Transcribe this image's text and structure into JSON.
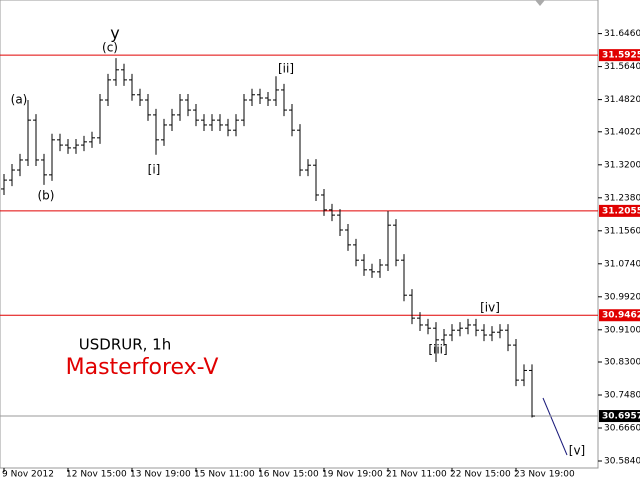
{
  "chart_data": {
    "type": "ohlc",
    "title": "USDRUR, 1h",
    "subtitle": "Masterforex-V",
    "categories": [
      "9 Nov 2012",
      null,
      null,
      null,
      null,
      null,
      null,
      null,
      "12 Nov 15:00",
      null,
      null,
      null,
      null,
      null,
      null,
      null,
      "13 Nov 19:00",
      null,
      null,
      null,
      null,
      null,
      null,
      null,
      "15 Nov 11:00",
      null,
      null,
      null,
      null,
      null,
      null,
      null,
      "16 Nov 15:00",
      null,
      null,
      null,
      null,
      null,
      null,
      null,
      "19 Nov 19:00",
      null,
      null,
      null,
      null,
      null,
      null,
      null,
      "21 Nov 11:00",
      null,
      null,
      null,
      null,
      null,
      null,
      null,
      "22 Nov 15:00",
      null,
      null,
      null,
      null,
      null,
      null,
      null,
      "23 Nov 19:00",
      null,
      null
    ],
    "open": [
      31.26,
      31.282,
      31.307,
      31.332,
      31.431,
      31.332,
      31.295,
      31.382,
      31.369,
      31.362,
      31.369,
      31.377,
      31.387,
      31.481,
      31.531,
      31.556,
      31.531,
      31.494,
      31.481,
      31.444,
      31.382,
      31.419,
      31.444,
      31.481,
      31.456,
      31.431,
      31.419,
      31.431,
      31.419,
      31.406,
      31.431,
      31.481,
      31.494,
      31.486,
      31.481,
      31.506,
      31.456,
      31.406,
      31.307,
      31.319,
      31.245,
      31.208,
      31.195,
      31.158,
      31.121,
      31.083,
      31.059,
      31.054,
      31.071,
      31.17,
      31.083,
      30.996,
      30.939,
      30.922,
      30.914,
      30.885,
      30.897,
      30.909,
      30.914,
      30.922,
      30.909,
      30.897,
      30.904,
      30.909,
      30.872,
      30.785,
      30.809
    ],
    "high": [
      31.297,
      31.322,
      31.347,
      31.481,
      31.446,
      31.347,
      31.397,
      31.397,
      31.384,
      31.384,
      31.392,
      31.402,
      31.496,
      31.546,
      31.585,
      31.571,
      31.546,
      31.509,
      31.496,
      31.459,
      31.434,
      31.459,
      31.496,
      31.496,
      31.471,
      31.446,
      31.446,
      31.446,
      31.434,
      31.446,
      31.496,
      31.509,
      31.509,
      31.501,
      31.54,
      31.521,
      31.471,
      31.421,
      31.334,
      31.334,
      31.26,
      31.223,
      31.21,
      31.173,
      31.136,
      31.098,
      31.074,
      31.086,
      31.205,
      31.185,
      31.098,
      31.011,
      30.954,
      30.937,
      30.929,
      30.912,
      30.924,
      30.929,
      30.937,
      30.937,
      30.924,
      30.919,
      30.924,
      30.924,
      30.887,
      30.824,
      30.824
    ],
    "low": [
      31.245,
      31.267,
      31.292,
      31.317,
      31.317,
      31.27,
      31.28,
      31.354,
      31.347,
      31.347,
      31.354,
      31.362,
      31.372,
      31.466,
      31.516,
      31.516,
      31.479,
      31.466,
      31.429,
      31.345,
      31.367,
      31.404,
      31.429,
      31.441,
      31.416,
      31.404,
      31.404,
      31.404,
      31.391,
      31.391,
      31.416,
      31.466,
      31.471,
      31.466,
      31.466,
      31.441,
      31.391,
      31.292,
      31.292,
      31.23,
      31.193,
      31.18,
      31.143,
      31.106,
      31.068,
      31.044,
      31.039,
      31.039,
      31.056,
      31.068,
      30.981,
      30.924,
      30.907,
      30.899,
      30.83,
      30.87,
      30.882,
      30.894,
      30.899,
      30.894,
      30.882,
      30.882,
      30.889,
      30.857,
      30.77,
      30.77,
      30.692
    ],
    "close": [
      31.282,
      31.307,
      31.332,
      31.431,
      31.332,
      31.295,
      31.382,
      31.369,
      31.362,
      31.369,
      31.377,
      31.387,
      31.481,
      31.531,
      31.556,
      31.531,
      31.494,
      31.481,
      31.444,
      31.382,
      31.419,
      31.444,
      31.481,
      31.456,
      31.431,
      31.419,
      31.431,
      31.419,
      31.406,
      31.431,
      31.481,
      31.494,
      31.486,
      31.481,
      31.506,
      31.456,
      31.406,
      31.307,
      31.319,
      31.245,
      31.208,
      31.195,
      31.158,
      31.121,
      31.083,
      31.059,
      31.054,
      31.071,
      31.17,
      31.083,
      30.996,
      30.939,
      30.922,
      30.914,
      30.885,
      30.897,
      30.909,
      30.914,
      30.922,
      30.909,
      30.897,
      30.904,
      30.909,
      30.872,
      30.785,
      30.809,
      30.6957
    ],
    "color": "#000000",
    "ylim": [
      30.5666,
      31.7295
    ],
    "yticks": [
      {
        "value": 31.646,
        "label": "31.6460"
      },
      {
        "value": 31.564,
        "label": "31.5640"
      },
      {
        "value": 31.482,
        "label": "31.4820"
      },
      {
        "value": 31.402,
        "label": "31.4020"
      },
      {
        "value": 31.32,
        "label": "31.3200"
      },
      {
        "value": 31.238,
        "label": "31.2380"
      },
      {
        "value": 31.156,
        "label": "31.1560"
      },
      {
        "value": 31.074,
        "label": "31.0740"
      },
      {
        "value": 30.992,
        "label": "30.9920"
      },
      {
        "value": 30.91,
        "label": "30.9100"
      },
      {
        "value": 30.83,
        "label": "30.8300"
      },
      {
        "value": 30.748,
        "label": "30.7480"
      },
      {
        "value": 30.666,
        "label": "30.6660"
      },
      {
        "value": 30.584,
        "label": "30.5840"
      }
    ],
    "levels": [
      {
        "value": 31.5925,
        "color": "#e00000"
      },
      {
        "value": 31.2055,
        "color": "#e00000"
      },
      {
        "value": 30.9462,
        "color": "#e00000"
      },
      {
        "value": 30.6957,
        "color": "#000000"
      }
    ],
    "annotations": [
      "(a)",
      "(b)",
      "y",
      "(c)",
      "[i]",
      "[ii]",
      "[iii]",
      "[iv]",
      "[v]"
    ]
  }
}
